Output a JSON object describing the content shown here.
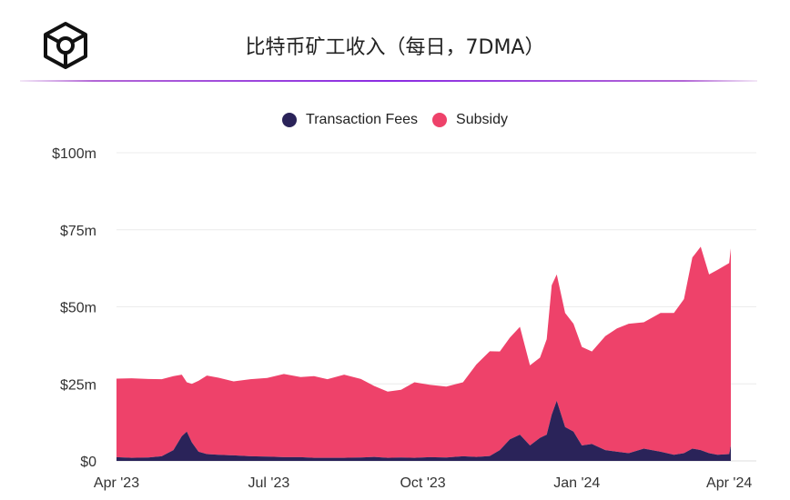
{
  "title": "比特币矿工收入（每日，7DMA）",
  "logo_icon": "cube-logo-icon",
  "colors": {
    "fees": "#2a2359",
    "subsidy": "#ee426a",
    "accent": "#8a2be2"
  },
  "chart_data": {
    "type": "area",
    "stacked": true,
    "legend_position": "top",
    "grid": true,
    "x_tick_labels": [
      "Apr '23",
      "Jul '23",
      "Oct '23",
      "Jan '24",
      "Apr '24"
    ],
    "x_tick_dates": [
      "2023-04-01",
      "2023-07-01",
      "2023-10-01",
      "2024-01-01",
      "2024-04-01"
    ],
    "y_tick_labels": [
      "$0",
      "$25m",
      "$50m",
      "$75m",
      "$100m"
    ],
    "y_tick_values": [
      0,
      25,
      50,
      75,
      100
    ],
    "ylim": [
      0,
      100
    ],
    "xlim": [
      "2023-04-01",
      "2024-04-02"
    ],
    "x": [
      "2023-04-01",
      "2023-04-10",
      "2023-04-20",
      "2023-04-28",
      "2023-05-05",
      "2023-05-10",
      "2023-05-13",
      "2023-05-16",
      "2023-05-20",
      "2023-05-25",
      "2023-06-01",
      "2023-06-10",
      "2023-06-20",
      "2023-06-30",
      "2023-07-10",
      "2023-07-20",
      "2023-07-28",
      "2023-08-05",
      "2023-08-15",
      "2023-08-25",
      "2023-09-02",
      "2023-09-10",
      "2023-09-18",
      "2023-09-26",
      "2023-10-05",
      "2023-10-15",
      "2023-10-25",
      "2023-11-02",
      "2023-11-10",
      "2023-11-16",
      "2023-11-22",
      "2023-11-28",
      "2023-12-04",
      "2023-12-10",
      "2023-12-14",
      "2023-12-17",
      "2023-12-20",
      "2023-12-25",
      "2023-12-30",
      "2024-01-04",
      "2024-01-10",
      "2024-01-18",
      "2024-01-25",
      "2024-02-01",
      "2024-02-10",
      "2024-02-20",
      "2024-02-28",
      "2024-03-05",
      "2024-03-10",
      "2024-03-15",
      "2024-03-20",
      "2024-03-25",
      "2024-04-01",
      "2024-04-02"
    ],
    "series": [
      {
        "name": "Transaction Fees",
        "values": [
          1.2,
          1.0,
          1.1,
          1.5,
          3.5,
          8.0,
          9.5,
          6.0,
          3.0,
          2.2,
          2.0,
          1.8,
          1.5,
          1.4,
          1.2,
          1.2,
          1.0,
          1.0,
          1.0,
          1.1,
          1.3,
          1.0,
          1.1,
          1.0,
          1.2,
          1.1,
          1.5,
          1.3,
          1.6,
          3.5,
          7.0,
          8.5,
          5.0,
          7.5,
          8.5,
          15.0,
          19.5,
          11.0,
          9.5,
          5.0,
          5.5,
          3.5,
          3.0,
          2.5,
          4.0,
          3.0,
          2.0,
          2.5,
          4.0,
          3.5,
          2.5,
          2.0,
          2.2,
          5.0
        ]
      },
      {
        "name": "Subsidy",
        "values": [
          25.5,
          25.8,
          25.5,
          25.0,
          24.0,
          20.0,
          16.0,
          19.0,
          23.0,
          25.5,
          25.0,
          24.0,
          25.0,
          25.5,
          27.0,
          26.0,
          26.5,
          25.5,
          27.0,
          25.5,
          23.0,
          21.5,
          22.0,
          24.5,
          23.5,
          23.0,
          24.0,
          30.0,
          34.0,
          32.0,
          33.0,
          35.0,
          26.0,
          26.0,
          31.0,
          42.0,
          41.0,
          37.0,
          35.0,
          32.0,
          30.0,
          37.0,
          40.0,
          42.0,
          41.0,
          45.0,
          46.0,
          50.0,
          62.0,
          66.0,
          58.0,
          60.0,
          62.0,
          64.0
        ]
      }
    ]
  }
}
